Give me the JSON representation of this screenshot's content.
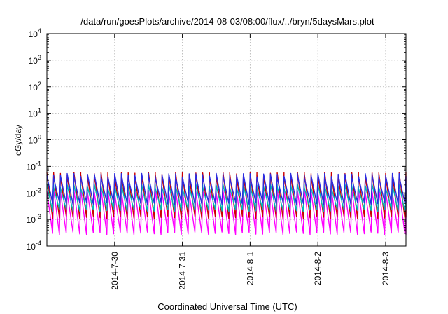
{
  "chart_data": {
    "type": "line",
    "title": "/data/run/goesPlots/archive/2014-08-03/08:00/flux/../bryn/5daysMars.plot",
    "xlabel": "Coordinated Universal Time (UTC)",
    "ylabel": "cGy/day",
    "yscale": "log",
    "ylim": [
      0.0001,
      10000
    ],
    "y_ticks": [
      {
        "value": 0.0001,
        "base": "10",
        "exp": "-4"
      },
      {
        "value": 0.001,
        "base": "10",
        "exp": "-3"
      },
      {
        "value": 0.01,
        "base": "10",
        "exp": "-2"
      },
      {
        "value": 0.1,
        "base": "10",
        "exp": "-1"
      },
      {
        "value": 1,
        "base": "10",
        "exp": "0"
      },
      {
        "value": 10,
        "base": "10",
        "exp": "1"
      },
      {
        "value": 100,
        "base": "10",
        "exp": "2"
      },
      {
        "value": 1000,
        "base": "10",
        "exp": "3"
      },
      {
        "value": 10000,
        "base": "10",
        "exp": "4"
      }
    ],
    "xlim_days": [
      0,
      5.3
    ],
    "x_ticks": [
      {
        "label": "2014-7-30",
        "day": 1
      },
      {
        "label": "2014-7-31",
        "day": 2
      },
      {
        "label": "2014-8-1",
        "day": 3
      },
      {
        "label": "2014-8-2",
        "day": 4
      },
      {
        "label": "2014-8-3",
        "day": 5
      }
    ],
    "grid": true,
    "legend": "none",
    "cycle_days": 0.1,
    "series": [
      {
        "color": "#ff00ff",
        "peak": 0.012,
        "trough": 0.0003
      },
      {
        "color": "#cc0000",
        "peak": 0.05,
        "trough": 0.0012
      },
      {
        "color": "#00b8b8",
        "peak": 0.018,
        "trough": 0.0022
      },
      {
        "color": "#2b2be0",
        "peak": 0.045,
        "trough": 0.004
      }
    ]
  }
}
